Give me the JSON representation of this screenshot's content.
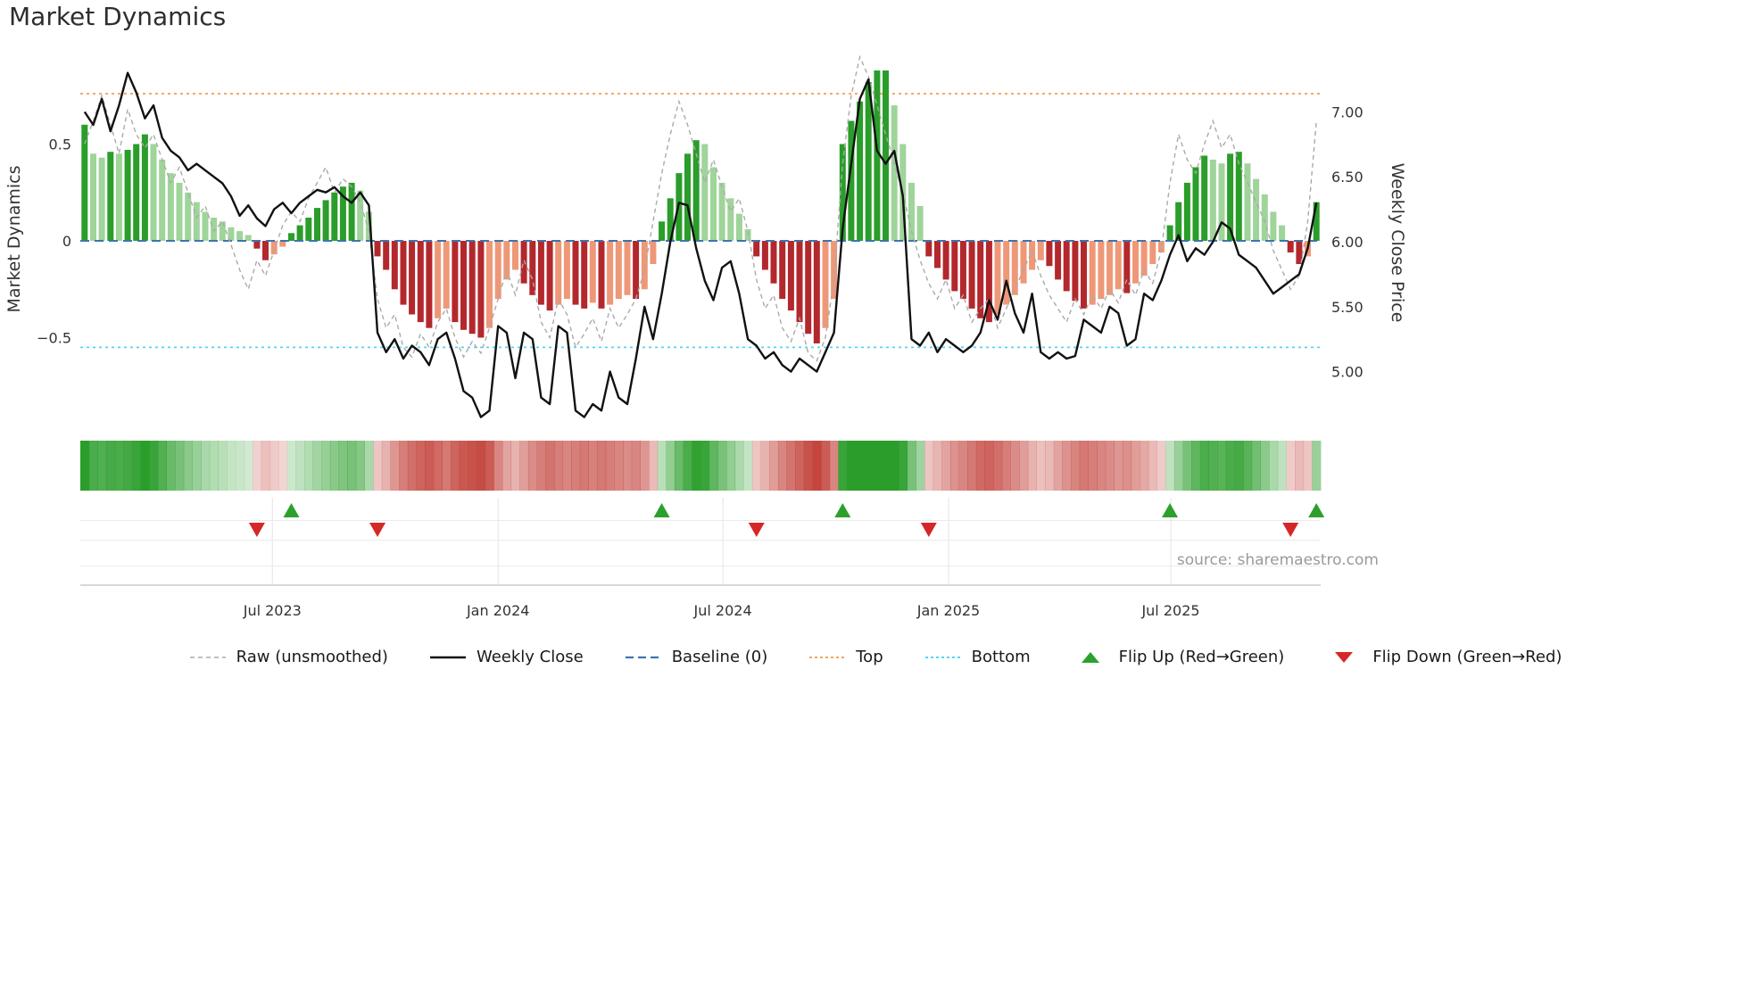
{
  "title": "Market Dynamics",
  "source": "source: sharemaestro.com",
  "colors": {
    "bar_dark_green": "#2a9d2a",
    "bar_light_green": "#9fd49a",
    "bar_dark_red": "#b3282d",
    "bar_light_red": "#ee9878",
    "heat_green": "#2a9d2a",
    "heat_red": "#c24038",
    "baseline": "#3b75af",
    "top": "#f2a45c",
    "bottom": "#55d4f0",
    "raw": "#aaaaaa",
    "close": "#111111",
    "flip_up": "#2ca02c",
    "flip_down": "#d62728"
  },
  "legend": [
    {
      "name": "legend-item-raw",
      "label": "Raw (unsmoothed)",
      "swatch": "line",
      "color": "#aaaaaa",
      "dash": "5 4",
      "width": 1.6
    },
    {
      "name": "legend-item-weekly-close",
      "label": "Weekly Close",
      "swatch": "line",
      "color": "#111111",
      "dash": "",
      "width": 2.6
    },
    {
      "name": "legend-item-baseline",
      "label": "Baseline (0)",
      "swatch": "line",
      "color": "#3b75af",
      "dash": "9 5",
      "width": 2.2
    },
    {
      "name": "legend-item-top",
      "label": "Top",
      "swatch": "line",
      "color": "#f2a45c",
      "dash": "3 3",
      "width": 2
    },
    {
      "name": "legend-item-bottom",
      "label": "Bottom",
      "swatch": "line",
      "color": "#55d4f0",
      "dash": "3 3",
      "width": 2
    },
    {
      "name": "legend-item-flip-up",
      "label": "Flip Up (Red→Green)",
      "swatch": "triangle-up",
      "color": "#2ca02c"
    },
    {
      "name": "legend-item-flip-down",
      "label": "Flip Down (Green→Red)",
      "swatch": "triangle-down",
      "color": "#d62728"
    }
  ],
  "chart_data": {
    "type": "combo",
    "x_unit": "week",
    "x_tick_labels": [
      {
        "label": "Jul 2023",
        "index": 21.8
      },
      {
        "label": "Jan 2024",
        "index": 48.0
      },
      {
        "label": "Jul 2024",
        "index": 74.1
      },
      {
        "label": "Jan 2025",
        "index": 100.3
      },
      {
        "label": "Jul 2025",
        "index": 126.1
      }
    ],
    "left_axis": {
      "label": "Market Dynamics",
      "ticks": [
        {
          "value": 0.5,
          "label": "0.5"
        },
        {
          "value": 0,
          "label": "0"
        },
        {
          "value": -0.5,
          "label": "−0.5"
        }
      ],
      "range": [
        -0.9,
        0.97
      ]
    },
    "right_axis": {
      "label": "Weekly Close Price",
      "ticks": [
        {
          "value": 7,
          "label": "7.00"
        },
        {
          "value": 6.5,
          "label": "6.50"
        },
        {
          "value": 6,
          "label": "6.00"
        },
        {
          "value": 5.5,
          "label": "5.50"
        },
        {
          "value": 5,
          "label": "5.00"
        }
      ],
      "range": [
        4.6,
        7.45
      ]
    },
    "bars": {
      "name": "Market Dynamics Oscillator",
      "axis": "left",
      "values": [
        0.6,
        0.45,
        0.43,
        0.46,
        0.45,
        0.47,
        0.5,
        0.55,
        0.5,
        0.42,
        0.35,
        0.3,
        0.25,
        0.2,
        0.15,
        0.12,
        0.1,
        0.07,
        0.05,
        0.03,
        -0.04,
        -0.1,
        -0.07,
        -0.03,
        0.04,
        0.08,
        0.12,
        0.17,
        0.21,
        0.25,
        0.28,
        0.3,
        0.26,
        0.15,
        -0.08,
        -0.15,
        -0.25,
        -0.33,
        -0.38,
        -0.42,
        -0.45,
        -0.4,
        -0.35,
        -0.42,
        -0.46,
        -0.48,
        -0.5,
        -0.45,
        -0.3,
        -0.2,
        -0.15,
        -0.22,
        -0.28,
        -0.33,
        -0.36,
        -0.33,
        -0.3,
        -0.33,
        -0.35,
        -0.32,
        -0.35,
        -0.33,
        -0.3,
        -0.28,
        -0.3,
        -0.25,
        -0.12,
        0.1,
        0.22,
        0.35,
        0.45,
        0.52,
        0.5,
        0.38,
        0.3,
        0.22,
        0.14,
        0.06,
        -0.08,
        -0.15,
        -0.22,
        -0.3,
        -0.36,
        -0.42,
        -0.48,
        -0.53,
        -0.45,
        -0.3,
        0.5,
        0.62,
        0.72,
        0.82,
        0.88,
        0.88,
        0.7,
        0.5,
        0.3,
        0.18,
        -0.08,
        -0.14,
        -0.2,
        -0.26,
        -0.3,
        -0.35,
        -0.4,
        -0.42,
        -0.38,
        -0.33,
        -0.28,
        -0.22,
        -0.15,
        -0.1,
        -0.13,
        -0.2,
        -0.26,
        -0.31,
        -0.35,
        -0.33,
        -0.3,
        -0.28,
        -0.25,
        -0.27,
        -0.22,
        -0.18,
        -0.12,
        -0.06,
        0.08,
        0.2,
        0.3,
        0.38,
        0.44,
        0.42,
        0.4,
        0.45,
        0.46,
        0.4,
        0.32,
        0.24,
        0.15,
        0.08,
        -0.06,
        -0.12,
        -0.08,
        0.2
      ]
    },
    "lines": [
      {
        "name": "Raw (unsmoothed)",
        "axis": "left",
        "values": [
          0.5,
          0.62,
          0.75,
          0.6,
          0.45,
          0.68,
          0.55,
          0.48,
          0.55,
          0.42,
          0.3,
          0.38,
          0.25,
          0.12,
          0.18,
          0.05,
          0.1,
          -0.02,
          -0.15,
          -0.25,
          -0.1,
          -0.18,
          -0.05,
          0.08,
          0.15,
          0.1,
          0.22,
          0.3,
          0.38,
          0.25,
          0.32,
          0.28,
          0.2,
          0.05,
          -0.3,
          -0.45,
          -0.38,
          -0.55,
          -0.6,
          -0.48,
          -0.55,
          -0.42,
          -0.35,
          -0.5,
          -0.6,
          -0.52,
          -0.58,
          -0.45,
          -0.3,
          -0.15,
          -0.28,
          -0.1,
          -0.2,
          -0.42,
          -0.5,
          -0.3,
          -0.38,
          -0.55,
          -0.48,
          -0.4,
          -0.52,
          -0.35,
          -0.45,
          -0.38,
          -0.3,
          -0.15,
          0.1,
          0.35,
          0.55,
          0.72,
          0.6,
          0.45,
          0.3,
          0.42,
          0.28,
          0.15,
          0.22,
          0.05,
          -0.2,
          -0.35,
          -0.28,
          -0.45,
          -0.52,
          -0.4,
          -0.58,
          -0.62,
          -0.5,
          -0.2,
          0.4,
          0.75,
          0.95,
          0.85,
          0.7,
          0.55,
          0.4,
          0.25,
          0.05,
          -0.1,
          -0.22,
          -0.3,
          -0.2,
          -0.35,
          -0.28,
          -0.42,
          -0.35,
          -0.3,
          -0.45,
          -0.35,
          -0.25,
          -0.15,
          -0.05,
          -0.18,
          -0.28,
          -0.35,
          -0.42,
          -0.3,
          -0.38,
          -0.28,
          -0.35,
          -0.25,
          -0.32,
          -0.2,
          -0.28,
          -0.15,
          -0.22,
          -0.05,
          0.3,
          0.55,
          0.42,
          0.35,
          0.5,
          0.62,
          0.48,
          0.55,
          0.4,
          0.3,
          0.2,
          0.1,
          -0.05,
          -0.15,
          -0.25,
          -0.18,
          0.1,
          0.62
        ]
      },
      {
        "name": "Weekly Close",
        "axis": "right",
        "values": [
          7.0,
          6.9,
          7.1,
          6.85,
          7.05,
          7.3,
          7.15,
          6.95,
          7.05,
          6.8,
          6.7,
          6.65,
          6.55,
          6.6,
          6.55,
          6.5,
          6.45,
          6.35,
          6.2,
          6.28,
          6.18,
          6.12,
          6.25,
          6.3,
          6.22,
          6.3,
          6.35,
          6.4,
          6.38,
          6.42,
          6.35,
          6.3,
          6.38,
          6.28,
          5.3,
          5.15,
          5.25,
          5.1,
          5.2,
          5.15,
          5.05,
          5.25,
          5.3,
          5.1,
          4.85,
          4.8,
          4.65,
          4.7,
          5.35,
          5.3,
          4.95,
          5.3,
          5.25,
          4.8,
          4.75,
          5.35,
          5.3,
          4.7,
          4.65,
          4.75,
          4.7,
          5.0,
          4.8,
          4.75,
          5.1,
          5.5,
          5.25,
          5.6,
          6.0,
          6.3,
          6.28,
          5.95,
          5.7,
          5.55,
          5.8,
          5.85,
          5.6,
          5.25,
          5.2,
          5.1,
          5.15,
          5.05,
          5.0,
          5.1,
          5.05,
          5.0,
          5.15,
          5.3,
          6.1,
          6.6,
          7.1,
          7.25,
          6.7,
          6.6,
          6.7,
          6.35,
          5.25,
          5.2,
          5.3,
          5.15,
          5.25,
          5.2,
          5.15,
          5.2,
          5.3,
          5.55,
          5.4,
          5.7,
          5.45,
          5.3,
          5.6,
          5.15,
          5.1,
          5.15,
          5.1,
          5.12,
          5.4,
          5.35,
          5.3,
          5.5,
          5.45,
          5.2,
          5.25,
          5.6,
          5.55,
          5.7,
          5.9,
          6.05,
          5.85,
          5.95,
          5.9,
          6.0,
          6.15,
          6.1,
          5.9,
          5.85,
          5.8,
          5.7,
          5.6,
          5.65,
          5.7,
          5.75,
          5.95,
          6.3
        ]
      }
    ],
    "reference_lines": [
      {
        "name": "Baseline (0)",
        "axis": "left",
        "value": 0
      },
      {
        "name": "Top",
        "axis": "left",
        "value": 0.76
      },
      {
        "name": "Bottom",
        "axis": "left",
        "value": -0.55
      }
    ],
    "flip_up_indices": [
      24,
      67,
      88,
      126,
      143
    ],
    "flip_down_indices": [
      20,
      34,
      78,
      98,
      140
    ]
  }
}
